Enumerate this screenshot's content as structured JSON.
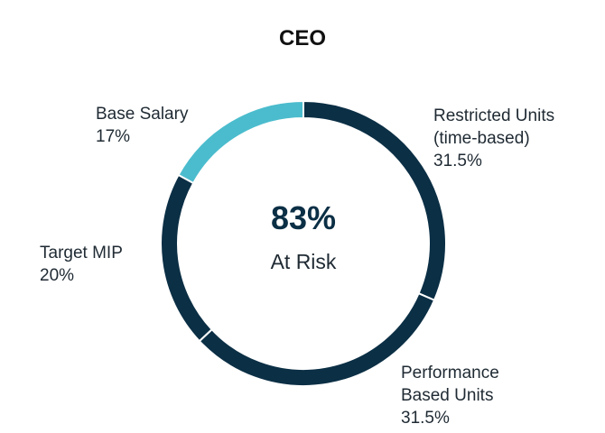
{
  "chart_data": {
    "type": "pie",
    "title": "CEO",
    "center_value": "83%",
    "center_label": "At Risk",
    "slices": [
      {
        "name": "Restricted Units (time-based)",
        "label_lines": [
          "Restricted Units",
          "(time-based)"
        ],
        "value": 31.5,
        "value_label": "31.5%",
        "color": "#0b2f45"
      },
      {
        "name": "Performance Based Units",
        "label_lines": [
          "Performance",
          "Based Units"
        ],
        "value": 31.5,
        "value_label": "31.5%",
        "color": "#0b2f45"
      },
      {
        "name": "Target MIP",
        "label_lines": [
          "Target MIP"
        ],
        "value": 20,
        "value_label": "20%",
        "color": "#0b2f45"
      },
      {
        "name": "Base Salary",
        "label_lines": [
          "Base Salary"
        ],
        "value": 17,
        "value_label": "17%",
        "color": "#4bbccd"
      }
    ]
  }
}
